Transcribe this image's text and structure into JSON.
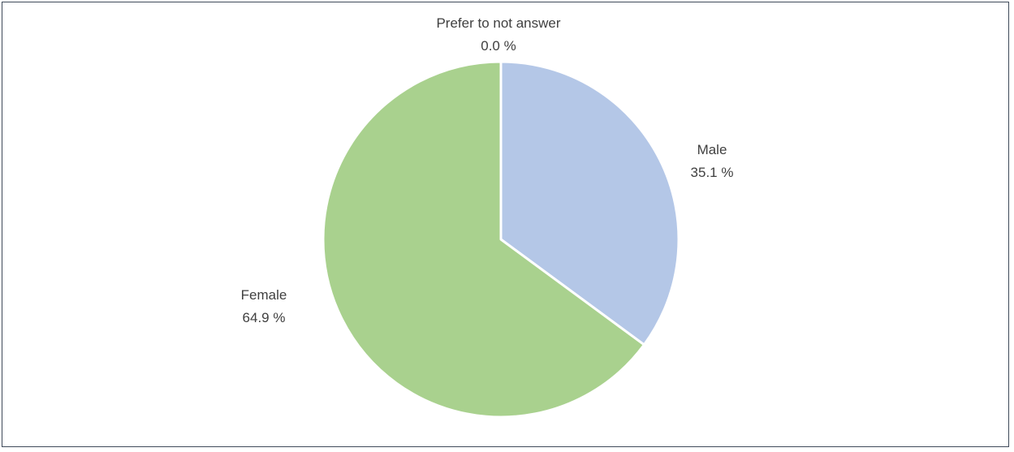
{
  "chart_data": {
    "type": "pie",
    "slices": [
      {
        "label": "Prefer to not answer",
        "value": 0.0,
        "value_text": "0.0 %",
        "color": "#f4b183"
      },
      {
        "label": "Male",
        "value": 35.1,
        "value_text": "35.1 %",
        "color": "#b4c7e7"
      },
      {
        "label": "Female",
        "value": 64.9,
        "value_text": "64.9 %",
        "color": "#a9d18e"
      }
    ],
    "start_angle_deg": 0,
    "direction": "clockwise",
    "slice_border_color": "#ffffff",
    "legend": "none",
    "title": ""
  }
}
